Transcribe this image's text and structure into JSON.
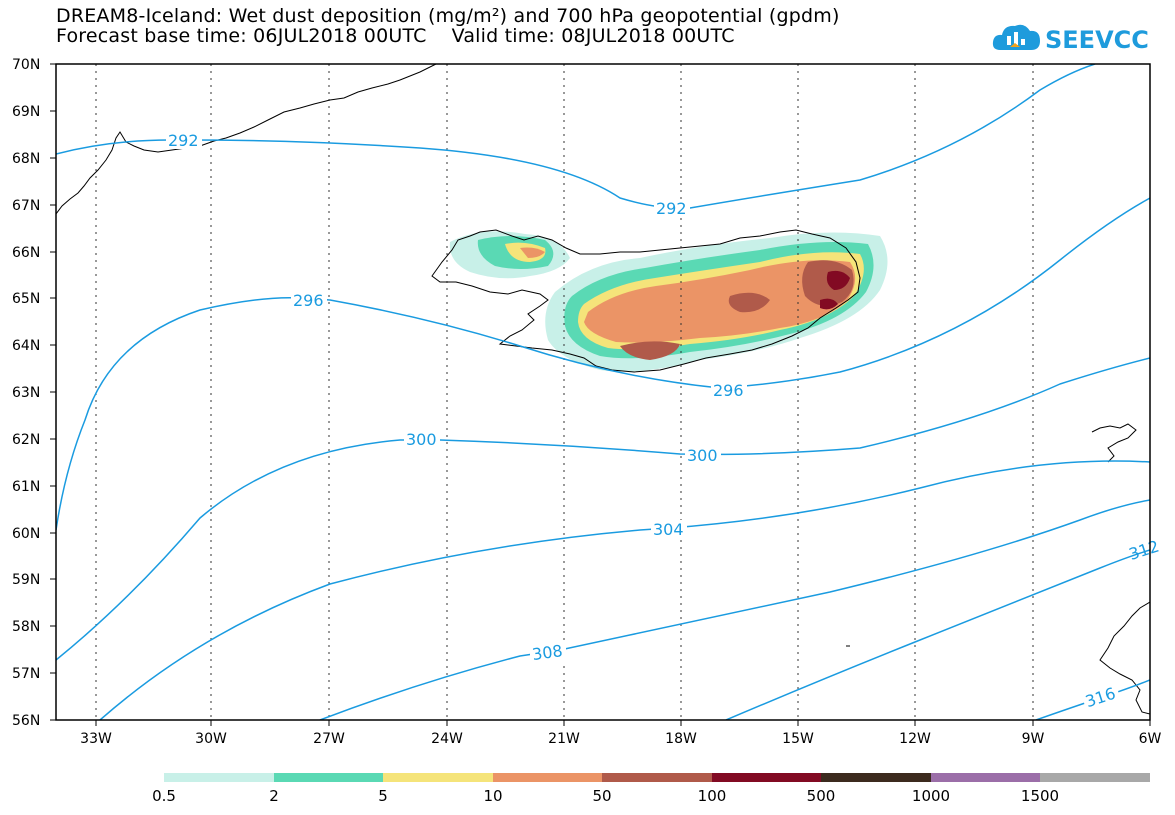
{
  "header": {
    "title_line1": "DREAM8-Iceland: Wet dust deposition (mg/m²) and 700 hPa geopotential (gpdm)",
    "title_line2": "Forecast base time: 06JUL2018 00UTC    Valid time: 08JUL2018 00UTC",
    "logo_text": "SEEVCCC",
    "logo_icon": "cloud-icon"
  },
  "map": {
    "lat_labels": [
      "70N",
      "69N",
      "68N",
      "67N",
      "66N",
      "65N",
      "64N",
      "63N",
      "62N",
      "61N",
      "60N",
      "59N",
      "58N",
      "57N",
      "56N"
    ],
    "lon_labels": [
      "33W",
      "30W",
      "27W",
      "24W",
      "21W",
      "18W",
      "15W",
      "12W",
      "9W",
      "6W"
    ],
    "contour_color": "#1a9be0",
    "contour_labels": [
      "292",
      "292",
      "296",
      "296",
      "300",
      "300",
      "304",
      "308",
      "312",
      "316"
    ]
  },
  "colorbar": {
    "colors": [
      "#c8f0e8",
      "#5ad9b4",
      "#f5e47a",
      "#eb9466",
      "#b05a4a",
      "#820a23",
      "#3c2a1e",
      "#9b6ea8",
      "#a8a8a8"
    ],
    "labels": [
      "0.5",
      "2",
      "5",
      "10",
      "50",
      "100",
      "500",
      "1000",
      "1500"
    ]
  }
}
